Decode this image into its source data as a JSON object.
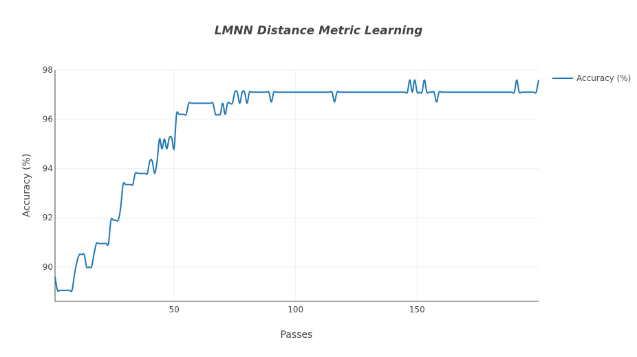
{
  "chart_data": {
    "type": "line",
    "title": "LMNN Distance Metric Learning",
    "xlabel": "Passes",
    "ylabel": "Accuracy (%)",
    "xlim": [
      1,
      200
    ],
    "ylim": [
      88.6,
      98
    ],
    "xticks": [
      50,
      100,
      150
    ],
    "xtick_labels": [
      "50",
      "100",
      "150"
    ],
    "yticks": [
      90,
      92,
      94,
      96,
      98
    ],
    "ytick_labels": [
      "90",
      "92",
      "94",
      "96",
      "98"
    ],
    "grid": true,
    "legend_position": "top-right",
    "series": [
      {
        "name": "Accuracy (%)",
        "color": "#1f77b4",
        "x": [
          1,
          2,
          3,
          4,
          5,
          6,
          7,
          8,
          9,
          10,
          11,
          12,
          13,
          14,
          15,
          16,
          17,
          18,
          19,
          20,
          21,
          22,
          23,
          24,
          25,
          26,
          27,
          28,
          29,
          30,
          31,
          32,
          33,
          34,
          35,
          36,
          37,
          38,
          39,
          40,
          41,
          42,
          43,
          44,
          45,
          46,
          47,
          48,
          49,
          50,
          51,
          52,
          53,
          54,
          55,
          56,
          57,
          58,
          59,
          60,
          61,
          62,
          63,
          64,
          65,
          66,
          67,
          68,
          69,
          70,
          71,
          72,
          73,
          74,
          75,
          76,
          77,
          78,
          79,
          80,
          81,
          82,
          83,
          84,
          85,
          86,
          87,
          88,
          89,
          90,
          91,
          92,
          93,
          94,
          95,
          96,
          97,
          98,
          99,
          100,
          101,
          102,
          103,
          104,
          105,
          106,
          107,
          108,
          109,
          110,
          111,
          112,
          113,
          114,
          115,
          116,
          117,
          118,
          119,
          120,
          121,
          122,
          123,
          124,
          125,
          126,
          127,
          128,
          129,
          130,
          131,
          132,
          133,
          134,
          135,
          136,
          137,
          138,
          139,
          140,
          141,
          142,
          143,
          144,
          145,
          146,
          147,
          148,
          149,
          150,
          151,
          152,
          153,
          154,
          155,
          156,
          157,
          158,
          159,
          160,
          161,
          162,
          163,
          164,
          165,
          166,
          167,
          168,
          169,
          170,
          171,
          172,
          173,
          174,
          175,
          176,
          177,
          178,
          179,
          180,
          181,
          182,
          183,
          184,
          185,
          186,
          187,
          188,
          189,
          190,
          191,
          192,
          193,
          194,
          195,
          196,
          197,
          198,
          199,
          200
        ],
        "y": [
          89.6,
          89.05,
          89.05,
          89.05,
          89.05,
          89.05,
          89.05,
          89.05,
          89.7,
          90.2,
          90.5,
          90.5,
          90.5,
          90.0,
          90.0,
          90.0,
          90.5,
          90.95,
          90.95,
          90.95,
          90.95,
          90.95,
          90.95,
          91.9,
          91.9,
          91.9,
          91.9,
          92.4,
          93.35,
          93.35,
          93.35,
          93.35,
          93.35,
          93.8,
          93.8,
          93.8,
          93.8,
          93.8,
          93.8,
          94.3,
          94.3,
          93.8,
          94.3,
          95.2,
          94.8,
          95.2,
          94.8,
          95.25,
          95.25,
          94.8,
          96.2,
          96.2,
          96.2,
          96.2,
          96.2,
          96.65,
          96.65,
          96.65,
          96.65,
          96.65,
          96.65,
          96.65,
          96.65,
          96.65,
          96.65,
          96.65,
          96.2,
          96.2,
          96.2,
          96.65,
          96.2,
          96.65,
          96.65,
          96.65,
          97.1,
          97.1,
          96.65,
          97.1,
          97.1,
          96.65,
          97.1,
          97.1,
          97.1,
          97.1,
          97.1,
          97.1,
          97.1,
          97.1,
          97.1,
          96.7,
          97.1,
          97.1,
          97.1,
          97.1,
          97.1,
          97.1,
          97.1,
          97.1,
          97.1,
          97.1,
          97.1,
          97.1,
          97.1,
          97.1,
          97.1,
          97.1,
          97.1,
          97.1,
          97.1,
          97.1,
          97.1,
          97.1,
          97.1,
          97.1,
          97.1,
          96.7,
          97.1,
          97.1,
          97.1,
          97.1,
          97.1,
          97.1,
          97.1,
          97.1,
          97.1,
          97.1,
          97.1,
          97.1,
          97.1,
          97.1,
          97.1,
          97.1,
          97.1,
          97.1,
          97.1,
          97.1,
          97.1,
          97.1,
          97.1,
          97.1,
          97.1,
          97.1,
          97.1,
          97.1,
          97.1,
          97.1,
          97.6,
          97.1,
          97.6,
          97.1,
          97.1,
          97.1,
          97.6,
          97.1,
          97.1,
          97.1,
          97.1,
          96.7,
          97.1,
          97.1,
          97.1,
          97.1,
          97.1,
          97.1,
          97.1,
          97.1,
          97.1,
          97.1,
          97.1,
          97.1,
          97.1,
          97.1,
          97.1,
          97.1,
          97.1,
          97.1,
          97.1,
          97.1,
          97.1,
          97.1,
          97.1,
          97.1,
          97.1,
          97.1,
          97.1,
          97.1,
          97.1,
          97.1,
          97.1,
          97.1,
          97.6,
          97.1,
          97.1,
          97.1,
          97.1,
          97.1,
          97.1,
          97.1,
          97.1,
          97.6
        ]
      }
    ]
  }
}
